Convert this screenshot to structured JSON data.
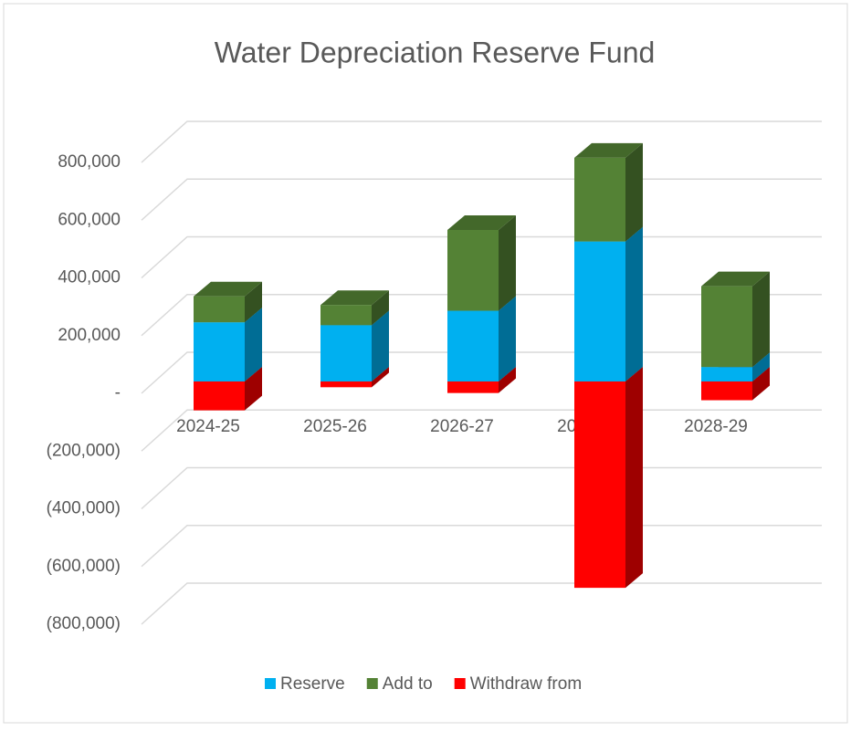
{
  "chart_data": {
    "type": "bar3d_stacked",
    "title": "Water Depreciation Reserve Fund",
    "categories": [
      "2024-25",
      "2025-26",
      "2026-27",
      "2027-28",
      "2028-29"
    ],
    "series": [
      {
        "name": "Reserve",
        "color": "#00b0f0",
        "values": [
          205000,
          195000,
          245000,
          485000,
          50000
        ]
      },
      {
        "name": "Add to",
        "color": "#548235",
        "values": [
          90000,
          70000,
          280000,
          290000,
          280000
        ]
      },
      {
        "name": "Withdraw from",
        "color": "#ff0000",
        "values": [
          -100000,
          -20000,
          -40000,
          -715000,
          -65000
        ]
      }
    ],
    "ylim": [
      -800000,
      800000
    ],
    "yticks": [
      {
        "value": -800000,
        "label": "(800,000)"
      },
      {
        "value": -600000,
        "label": "(600,000)"
      },
      {
        "value": -400000,
        "label": "(400,000)"
      },
      {
        "value": -200000,
        "label": "(200,000)"
      },
      {
        "value": 0,
        "label": "-"
      },
      {
        "value": 200000,
        "label": "200,000"
      },
      {
        "value": 400000,
        "label": "400,000"
      },
      {
        "value": 600000,
        "label": "600,000"
      },
      {
        "value": 800000,
        "label": "800,000"
      }
    ],
    "grid": true,
    "legend": "bottom"
  }
}
